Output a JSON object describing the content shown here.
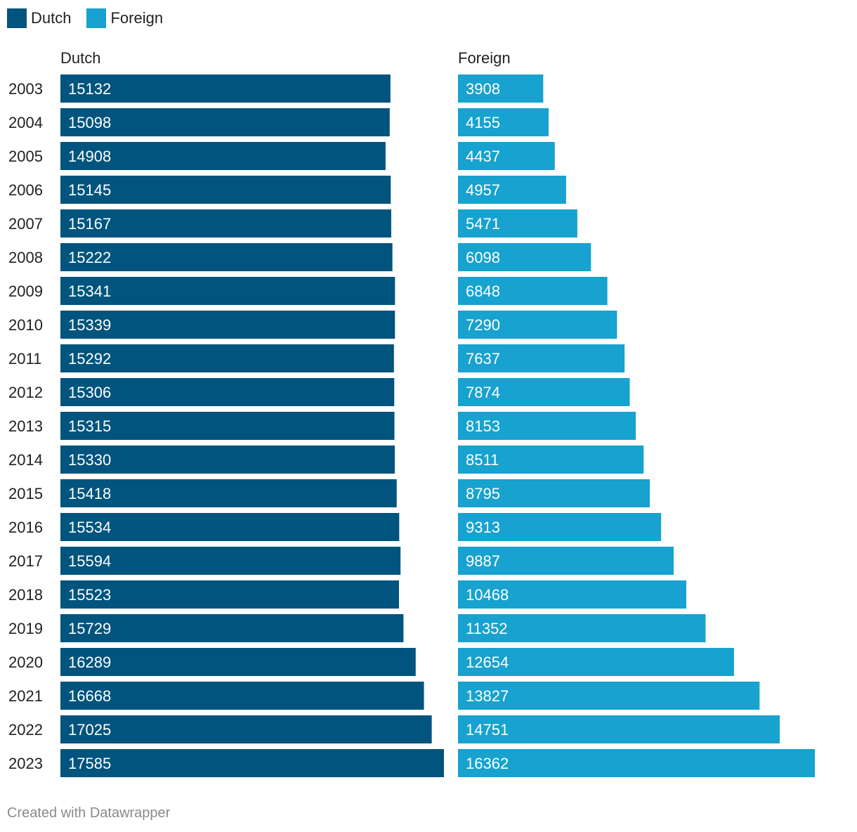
{
  "legend": [
    {
      "label": "Dutch",
      "color": "#00547d"
    },
    {
      "label": "Foreign",
      "color": "#17a2cf"
    }
  ],
  "footer": "Created with Datawrapper",
  "chart_data": {
    "type": "bar",
    "orientation": "horizontal",
    "categories": [
      "2003",
      "2004",
      "2005",
      "2006",
      "2007",
      "2008",
      "2009",
      "2010",
      "2011",
      "2012",
      "2013",
      "2014",
      "2015",
      "2016",
      "2017",
      "2018",
      "2019",
      "2020",
      "2021",
      "2022",
      "2023"
    ],
    "series": [
      {
        "name": "Dutch",
        "color": "#00547d",
        "values": [
          15132,
          15098,
          14908,
          15145,
          15167,
          15222,
          15341,
          15339,
          15292,
          15306,
          15315,
          15330,
          15418,
          15534,
          15594,
          15523,
          15729,
          16289,
          16668,
          17025,
          17585
        ]
      },
      {
        "name": "Foreign",
        "color": "#17a2cf",
        "values": [
          3908,
          4155,
          4437,
          4957,
          5471,
          6098,
          6848,
          7290,
          7637,
          7874,
          8153,
          8511,
          8795,
          9313,
          9887,
          10468,
          11352,
          12654,
          13827,
          14751,
          16362
        ]
      }
    ],
    "xlim": [
      0,
      17585
    ],
    "panel_titles": [
      "Dutch",
      "Foreign"
    ]
  }
}
